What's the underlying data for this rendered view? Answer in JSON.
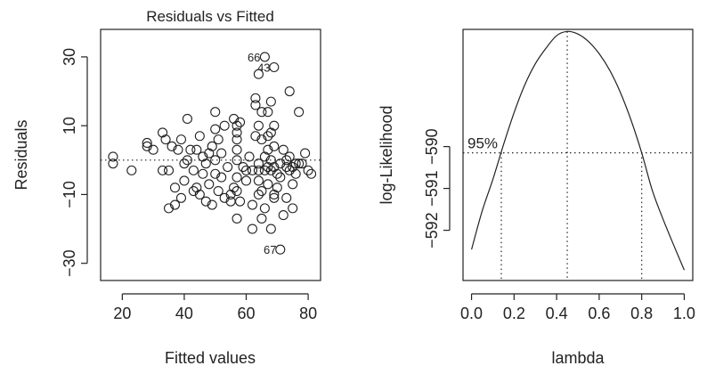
{
  "chart_data": [
    {
      "type": "scatter",
      "title": "Residuals vs Fitted",
      "xlabel": "Fitted values",
      "ylabel": "Residuals",
      "xlim": [
        13,
        84
      ],
      "ylim": [
        -35,
        38
      ],
      "xticks": [
        20,
        40,
        60,
        80
      ],
      "yticks": [
        -30,
        -10,
        10,
        30
      ],
      "reference_line_y": 0,
      "labeled_points": [
        {
          "label": "66",
          "x": 66.3,
          "y": 30
        },
        {
          "label": "43",
          "x": 69.5,
          "y": 27
        },
        {
          "label": "67",
          "x": 71.5,
          "y": -26
        }
      ],
      "points": [
        [
          17,
          1
        ],
        [
          17,
          -1
        ],
        [
          23,
          -3
        ],
        [
          28,
          5
        ],
        [
          28,
          4
        ],
        [
          30,
          3
        ],
        [
          33,
          8
        ],
        [
          33,
          -3
        ],
        [
          34,
          6
        ],
        [
          35,
          -3
        ],
        [
          35,
          -14
        ],
        [
          36,
          4
        ],
        [
          37,
          -13
        ],
        [
          37,
          -8
        ],
        [
          38,
          3
        ],
        [
          39,
          -11
        ],
        [
          39,
          6
        ],
        [
          40,
          -1
        ],
        [
          40,
          -6
        ],
        [
          41,
          12
        ],
        [
          41,
          0
        ],
        [
          42,
          3
        ],
        [
          43,
          -9
        ],
        [
          43,
          -3
        ],
        [
          44,
          -8
        ],
        [
          44,
          3
        ],
        [
          45,
          -10
        ],
        [
          45,
          7
        ],
        [
          46,
          1
        ],
        [
          46,
          -4
        ],
        [
          47,
          -1
        ],
        [
          47,
          -12
        ],
        [
          48,
          2
        ],
        [
          48,
          -7
        ],
        [
          49,
          4
        ],
        [
          49,
          -13
        ],
        [
          50,
          14
        ],
        [
          50,
          9
        ],
        [
          50,
          0
        ],
        [
          50,
          -4
        ],
        [
          51,
          6
        ],
        [
          51,
          -9
        ],
        [
          52,
          2
        ],
        [
          52,
          -5
        ],
        [
          53,
          -11
        ],
        [
          53,
          10
        ],
        [
          54,
          -2
        ],
        [
          55,
          -10
        ],
        [
          55,
          -12
        ],
        [
          56,
          12
        ],
        [
          56,
          -8
        ],
        [
          57,
          -5
        ],
        [
          57,
          0
        ],
        [
          57,
          3
        ],
        [
          57,
          6
        ],
        [
          57,
          8
        ],
        [
          57,
          10
        ],
        [
          57,
          -9
        ],
        [
          57,
          -17
        ],
        [
          58,
          -12
        ],
        [
          58,
          11
        ],
        [
          59,
          -2
        ],
        [
          60,
          -6
        ],
        [
          60,
          -3
        ],
        [
          61,
          1
        ],
        [
          62,
          -3
        ],
        [
          62,
          -13
        ],
        [
          62,
          -20
        ],
        [
          63,
          18
        ],
        [
          63,
          16
        ],
        [
          63,
          7
        ],
        [
          64,
          -1
        ],
        [
          64,
          -3
        ],
        [
          64,
          -6
        ],
        [
          64,
          -10
        ],
        [
          64,
          10
        ],
        [
          64,
          25
        ],
        [
          65,
          14
        ],
        [
          65,
          6
        ],
        [
          65,
          -9
        ],
        [
          65,
          -17
        ],
        [
          66,
          -14
        ],
        [
          66,
          1
        ],
        [
          66,
          -3
        ],
        [
          67,
          3
        ],
        [
          67,
          7
        ],
        [
          67,
          14
        ],
        [
          67,
          -2
        ],
        [
          67,
          -7
        ],
        [
          68,
          17
        ],
        [
          68,
          8
        ],
        [
          68,
          0
        ],
        [
          68,
          -3
        ],
        [
          68,
          -20
        ],
        [
          69,
          10
        ],
        [
          69,
          4
        ],
        [
          69,
          -2
        ],
        [
          69,
          -10
        ],
        [
          69,
          -11
        ],
        [
          70,
          -4
        ],
        [
          70,
          -8
        ],
        [
          71,
          -1
        ],
        [
          71,
          -5
        ],
        [
          72,
          3
        ],
        [
          72,
          -16
        ],
        [
          73,
          0
        ],
        [
          73,
          -2
        ],
        [
          73,
          -11
        ],
        [
          74,
          1
        ],
        [
          74,
          -3
        ],
        [
          74,
          20
        ],
        [
          75,
          -2
        ],
        [
          75,
          -7
        ],
        [
          75,
          -14
        ],
        [
          76,
          -1
        ],
        [
          76,
          -4
        ],
        [
          77,
          14
        ],
        [
          77,
          -1
        ],
        [
          78,
          -1
        ],
        [
          79,
          2
        ],
        [
          80,
          -3
        ],
        [
          81,
          -4
        ],
        [
          66,
          30
        ],
        [
          69,
          27
        ],
        [
          71,
          -26
        ]
      ]
    },
    {
      "type": "line",
      "xlabel": "lambda",
      "ylabel": "log-Likelihood",
      "xlim": [
        -0.04,
        1.04
      ],
      "ylim": [
        -593.2,
        -587.2
      ],
      "xticks": [
        "0.0",
        "0.2",
        "0.4",
        "0.6",
        "0.8",
        "1.0"
      ],
      "xtick_values": [
        0,
        0.2,
        0.4,
        0.6,
        0.8,
        1.0
      ],
      "yticks": [
        "-592",
        "-591",
        "-590"
      ],
      "ytick_values": [
        -592,
        -591,
        -590
      ],
      "ci_label": "95%",
      "max_lambda": 0.45,
      "max_loglik": -587.25,
      "ci_lower": 0.14,
      "ci_upper": 0.8,
      "ci_level_loglik": -590.15,
      "curve": {
        "x": [
          0.0,
          0.05,
          0.1,
          0.15,
          0.2,
          0.25,
          0.3,
          0.35,
          0.4,
          0.45,
          0.5,
          0.55,
          0.6,
          0.65,
          0.7,
          0.75,
          0.8,
          0.85,
          0.9,
          0.95,
          1.0
        ],
        "y": [
          -592.46,
          -591.54,
          -590.79,
          -589.96,
          -589.19,
          -588.53,
          -588.02,
          -587.65,
          -587.35,
          -587.25,
          -587.31,
          -587.49,
          -587.78,
          -588.18,
          -588.71,
          -589.37,
          -590.15,
          -591.05,
          -591.73,
          -592.35,
          -592.95
        ]
      }
    }
  ]
}
